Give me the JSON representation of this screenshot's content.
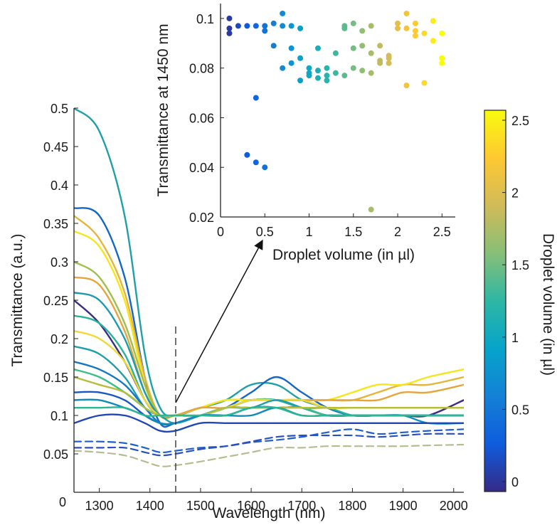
{
  "chart_data": [
    {
      "type": "line",
      "panel": "main",
      "xlabel": "Wavelength (nm)",
      "ylabel": "Transmittance (a.u.)",
      "xlim": [
        1250,
        2020
      ],
      "ylim": [
        0,
        0.5
      ],
      "x_ticks": [
        1300,
        1400,
        1500,
        1600,
        1700,
        1800,
        1900,
        2000
      ],
      "y_ticks": [
        0,
        0.05,
        0.1,
        0.15,
        0.2,
        0.25,
        0.3,
        0.35,
        0.4,
        0.45,
        0.5
      ],
      "y_tick_labels": [
        "0",
        "0.05",
        "0.1",
        "0.15",
        "0.2",
        "0.25",
        "0.3",
        "0.35",
        "0.4",
        "0.45",
        "0.5"
      ],
      "grid": false,
      "marker_line_x": 1450,
      "x_samples": [
        1250,
        1300,
        1350,
        1390,
        1420,
        1450,
        1500,
        1550,
        1600,
        1650,
        1700,
        1750,
        1800,
        1850,
        1900,
        1950,
        2020
      ],
      "series": [
        {
          "volume": 0.7,
          "color": "#1fa0a8",
          "values": [
            0.5,
            0.47,
            0.36,
            0.18,
            0.11,
            0.1,
            0.11,
            0.12,
            0.14,
            0.14,
            0.12,
            0.11,
            0.1,
            0.1,
            0.1,
            0.1,
            0.1
          ]
        },
        {
          "volume": 0.5,
          "color": "#1466c8",
          "values": [
            0.37,
            0.36,
            0.28,
            0.15,
            0.09,
            0.09,
            0.1,
            0.11,
            0.13,
            0.15,
            0.13,
            0.11,
            0.1,
            0.1,
            0.1,
            0.1,
            0.1
          ]
        },
        {
          "volume": 2.0,
          "color": "#e6b43a",
          "values": [
            0.36,
            0.33,
            0.26,
            0.15,
            0.1,
            0.1,
            0.11,
            0.12,
            0.12,
            0.12,
            0.12,
            0.12,
            0.12,
            0.13,
            0.14,
            0.14,
            0.15
          ]
        },
        {
          "volume": 2.5,
          "color": "#f4e51c",
          "values": [
            0.34,
            0.32,
            0.25,
            0.14,
            0.1,
            0.1,
            0.11,
            0.12,
            0.12,
            0.12,
            0.12,
            0.12,
            0.13,
            0.14,
            0.14,
            0.15,
            0.16
          ]
        },
        {
          "volume": 1.7,
          "color": "#9fbf4a",
          "values": [
            0.3,
            0.28,
            0.22,
            0.14,
            0.1,
            0.1,
            0.11,
            0.11,
            0.12,
            0.12,
            0.11,
            0.11,
            0.11,
            0.11,
            0.11,
            0.11,
            0.11
          ]
        },
        {
          "volume": 2.2,
          "color": "#e5a53b",
          "values": [
            0.28,
            0.27,
            0.21,
            0.13,
            0.1,
            0.1,
            0.11,
            0.11,
            0.12,
            0.12,
            0.12,
            0.12,
            0.12,
            0.12,
            0.13,
            0.13,
            0.14
          ]
        },
        {
          "volume": 1.1,
          "color": "#1c9ab0",
          "values": [
            0.26,
            0.25,
            0.2,
            0.13,
            0.1,
            0.1,
            0.1,
            0.11,
            0.12,
            0.12,
            0.11,
            0.11,
            0.1,
            0.1,
            0.1,
            0.1,
            0.1
          ]
        },
        {
          "volume": 0.1,
          "color": "#3a2d8a",
          "values": [
            0.25,
            0.22,
            0.17,
            0.12,
            0.1,
            0.1,
            0.1,
            0.11,
            0.11,
            0.11,
            0.11,
            0.1,
            0.1,
            0.1,
            0.1,
            0.1,
            0.12
          ]
        },
        {
          "volume": 1.4,
          "color": "#26b49a",
          "values": [
            0.23,
            0.22,
            0.18,
            0.12,
            0.1,
            0.1,
            0.1,
            0.11,
            0.12,
            0.12,
            0.11,
            0.11,
            0.1,
            0.1,
            0.1,
            0.1,
            0.1
          ]
        },
        {
          "volume": 2.4,
          "color": "#f2d832",
          "values": [
            0.21,
            0.2,
            0.17,
            0.12,
            0.1,
            0.1,
            0.1,
            0.11,
            0.12,
            0.12,
            0.12,
            0.11,
            0.11,
            0.11,
            0.11,
            0.11,
            0.11
          ]
        },
        {
          "volume": 1.2,
          "color": "#1e9eac",
          "values": [
            0.19,
            0.18,
            0.15,
            0.11,
            0.1,
            0.09,
            0.1,
            0.11,
            0.11,
            0.12,
            0.11,
            0.1,
            0.1,
            0.1,
            0.1,
            0.1,
            0.1
          ]
        },
        {
          "volume": 0.6,
          "color": "#1478c4",
          "values": [
            0.17,
            0.16,
            0.14,
            0.11,
            0.09,
            0.09,
            0.1,
            0.1,
            0.11,
            0.11,
            0.11,
            0.1,
            0.1,
            0.1,
            0.1,
            0.1,
            0.1
          ]
        },
        {
          "volume": 1.6,
          "color": "#3bbf86",
          "values": [
            0.16,
            0.15,
            0.13,
            0.11,
            0.1,
            0.1,
            0.1,
            0.11,
            0.11,
            0.11,
            0.11,
            0.1,
            0.1,
            0.1,
            0.1,
            0.1,
            0.1
          ]
        },
        {
          "volume": 1.9,
          "color": "#b8be3c",
          "values": [
            0.15,
            0.14,
            0.13,
            0.11,
            0.1,
            0.1,
            0.1,
            0.11,
            0.11,
            0.11,
            0.11,
            0.11,
            0.11,
            0.11,
            0.11,
            0.11,
            0.11
          ]
        },
        {
          "volume": 0.4,
          "color": "#1a56c4",
          "values": [
            0.13,
            0.13,
            0.12,
            0.1,
            0.09,
            0.09,
            0.1,
            0.1,
            0.11,
            0.11,
            0.1,
            0.1,
            0.1,
            0.1,
            0.1,
            0.1,
            0.1
          ]
        },
        {
          "volume": 0.9,
          "color": "#0e8bbc",
          "values": [
            0.12,
            0.12,
            0.11,
            0.1,
            0.09,
            0.09,
            0.1,
            0.1,
            0.1,
            0.11,
            0.1,
            0.1,
            0.1,
            0.1,
            0.1,
            0.09,
            0.09
          ]
        },
        {
          "volume": 1.5,
          "color": "#2ab890",
          "values": [
            0.11,
            0.11,
            0.11,
            0.1,
            0.1,
            0.1,
            0.1,
            0.1,
            0.11,
            0.11,
            0.1,
            0.1,
            0.1,
            0.1,
            0.1,
            0.1,
            0.1
          ]
        },
        {
          "volume": 0.3,
          "color": "#2146b8",
          "values": [
            0.09,
            0.1,
            0.1,
            0.09,
            0.08,
            0.08,
            0.09,
            0.09,
            0.09,
            0.09,
            0.09,
            0.09,
            0.09,
            0.09,
            0.09,
            0.09,
            0.09
          ]
        },
        {
          "volume": 0.4,
          "color": "#1f5fcc",
          "dashed": true,
          "values": [
            0.066,
            0.066,
            0.064,
            0.058,
            0.052,
            0.054,
            0.058,
            0.06,
            0.065,
            0.068,
            0.072,
            0.078,
            0.082,
            0.076,
            0.078,
            0.08,
            0.082
          ]
        },
        {
          "volume": 0.3,
          "color": "#2a4fc0",
          "dashed": true,
          "values": [
            0.058,
            0.058,
            0.058,
            0.052,
            0.048,
            0.05,
            0.056,
            0.06,
            0.066,
            0.072,
            0.074,
            0.074,
            0.074,
            0.072,
            0.074,
            0.076,
            0.076
          ]
        },
        {
          "volume": 1.7,
          "color": "#b5bc8e",
          "dashed": true,
          "values": [
            0.054,
            0.052,
            0.048,
            0.04,
            0.034,
            0.035,
            0.04,
            0.046,
            0.052,
            0.058,
            0.058,
            0.06,
            0.06,
            0.06,
            0.06,
            0.061,
            0.062
          ]
        }
      ]
    },
    {
      "type": "scatter",
      "panel": "inset",
      "xlabel": "Droplet volume (in µl)",
      "ylabel": "Transmittance at 1450 nm",
      "xlim": [
        0,
        2.65
      ],
      "ylim": [
        0.02,
        0.106
      ],
      "x_ticks": [
        0,
        0.5,
        1,
        1.5,
        2,
        2.5
      ],
      "x_tick_labels": [
        "0",
        "0.5",
        "1",
        "1.5",
        "2",
        "2.5"
      ],
      "y_ticks": [
        0.02,
        0.04,
        0.06,
        0.08,
        0.1
      ],
      "y_tick_labels": [
        "0.02",
        "0.04",
        "0.06",
        "0.08",
        "0.1"
      ],
      "grid": false,
      "points": [
        {
          "x": 0.1,
          "y": 0.1
        },
        {
          "x": 0.1,
          "y": 0.096
        },
        {
          "x": 0.1,
          "y": 0.094
        },
        {
          "x": 0.2,
          "y": 0.097
        },
        {
          "x": 0.3,
          "y": 0.097
        },
        {
          "x": 0.3,
          "y": 0.045
        },
        {
          "x": 0.4,
          "y": 0.097
        },
        {
          "x": 0.4,
          "y": 0.068
        },
        {
          "x": 0.4,
          "y": 0.042
        },
        {
          "x": 0.5,
          "y": 0.097
        },
        {
          "x": 0.5,
          "y": 0.095
        },
        {
          "x": 0.5,
          "y": 0.04
        },
        {
          "x": 0.6,
          "y": 0.098
        },
        {
          "x": 0.6,
          "y": 0.089
        },
        {
          "x": 0.7,
          "y": 0.102
        },
        {
          "x": 0.7,
          "y": 0.097
        },
        {
          "x": 0.7,
          "y": 0.08
        },
        {
          "x": 0.8,
          "y": 0.097
        },
        {
          "x": 0.8,
          "y": 0.088
        },
        {
          "x": 0.8,
          "y": 0.082
        },
        {
          "x": 0.9,
          "y": 0.096
        },
        {
          "x": 0.9,
          "y": 0.084
        },
        {
          "x": 0.9,
          "y": 0.075
        },
        {
          "x": 1.0,
          "y": 0.08
        },
        {
          "x": 1.0,
          "y": 0.078
        },
        {
          "x": 1.0,
          "y": 0.077
        },
        {
          "x": 1.1,
          "y": 0.088
        },
        {
          "x": 1.1,
          "y": 0.079
        },
        {
          "x": 1.1,
          "y": 0.076
        },
        {
          "x": 1.2,
          "y": 0.08
        },
        {
          "x": 1.2,
          "y": 0.077
        },
        {
          "x": 1.2,
          "y": 0.075
        },
        {
          "x": 1.3,
          "y": 0.086
        },
        {
          "x": 1.3,
          "y": 0.078
        },
        {
          "x": 1.4,
          "y": 0.077
        },
        {
          "x": 1.4,
          "y": 0.097
        },
        {
          "x": 1.4,
          "y": 0.096
        },
        {
          "x": 1.5,
          "y": 0.098
        },
        {
          "x": 1.5,
          "y": 0.088
        },
        {
          "x": 1.5,
          "y": 0.08
        },
        {
          "x": 1.6,
          "y": 0.095
        },
        {
          "x": 1.6,
          "y": 0.089
        },
        {
          "x": 1.6,
          "y": 0.079
        },
        {
          "x": 1.7,
          "y": 0.097
        },
        {
          "x": 1.7,
          "y": 0.086
        },
        {
          "x": 1.7,
          "y": 0.078
        },
        {
          "x": 1.7,
          "y": 0.023
        },
        {
          "x": 1.8,
          "y": 0.089
        },
        {
          "x": 1.8,
          "y": 0.083
        },
        {
          "x": 1.8,
          "y": 0.082
        },
        {
          "x": 1.9,
          "y": 0.085
        },
        {
          "x": 1.9,
          "y": 0.084
        },
        {
          "x": 1.9,
          "y": 0.082
        },
        {
          "x": 2.0,
          "y": 0.098
        },
        {
          "x": 2.0,
          "y": 0.096
        },
        {
          "x": 2.1,
          "y": 0.102
        },
        {
          "x": 2.1,
          "y": 0.096
        },
        {
          "x": 2.1,
          "y": 0.073
        },
        {
          "x": 2.2,
          "y": 0.098
        },
        {
          "x": 2.2,
          "y": 0.095
        },
        {
          "x": 2.2,
          "y": 0.093
        },
        {
          "x": 2.3,
          "y": 0.094
        },
        {
          "x": 2.3,
          "y": 0.074
        },
        {
          "x": 2.4,
          "y": 0.099
        },
        {
          "x": 2.4,
          "y": 0.091
        },
        {
          "x": 2.5,
          "y": 0.094
        },
        {
          "x": 2.5,
          "y": 0.084
        },
        {
          "x": 2.5,
          "y": 0.082
        }
      ]
    },
    {
      "type": "colorbar",
      "panel": "colorbar",
      "label": "Droplet volume (in µl)",
      "range": [
        0,
        2.5
      ],
      "ticks": [
        0,
        0.5,
        1,
        1.5,
        2,
        2.5
      ],
      "tick_labels": [
        "0",
        "0.5",
        "1",
        "1.5",
        "2",
        "2.5"
      ],
      "colormap_stops": [
        "#352a87",
        "#0f5cdd",
        "#1481d6",
        "#06a4ca",
        "#2eb7a4",
        "#87bf77",
        "#d1bb59",
        "#fec832",
        "#f9fb0e"
      ]
    }
  ]
}
